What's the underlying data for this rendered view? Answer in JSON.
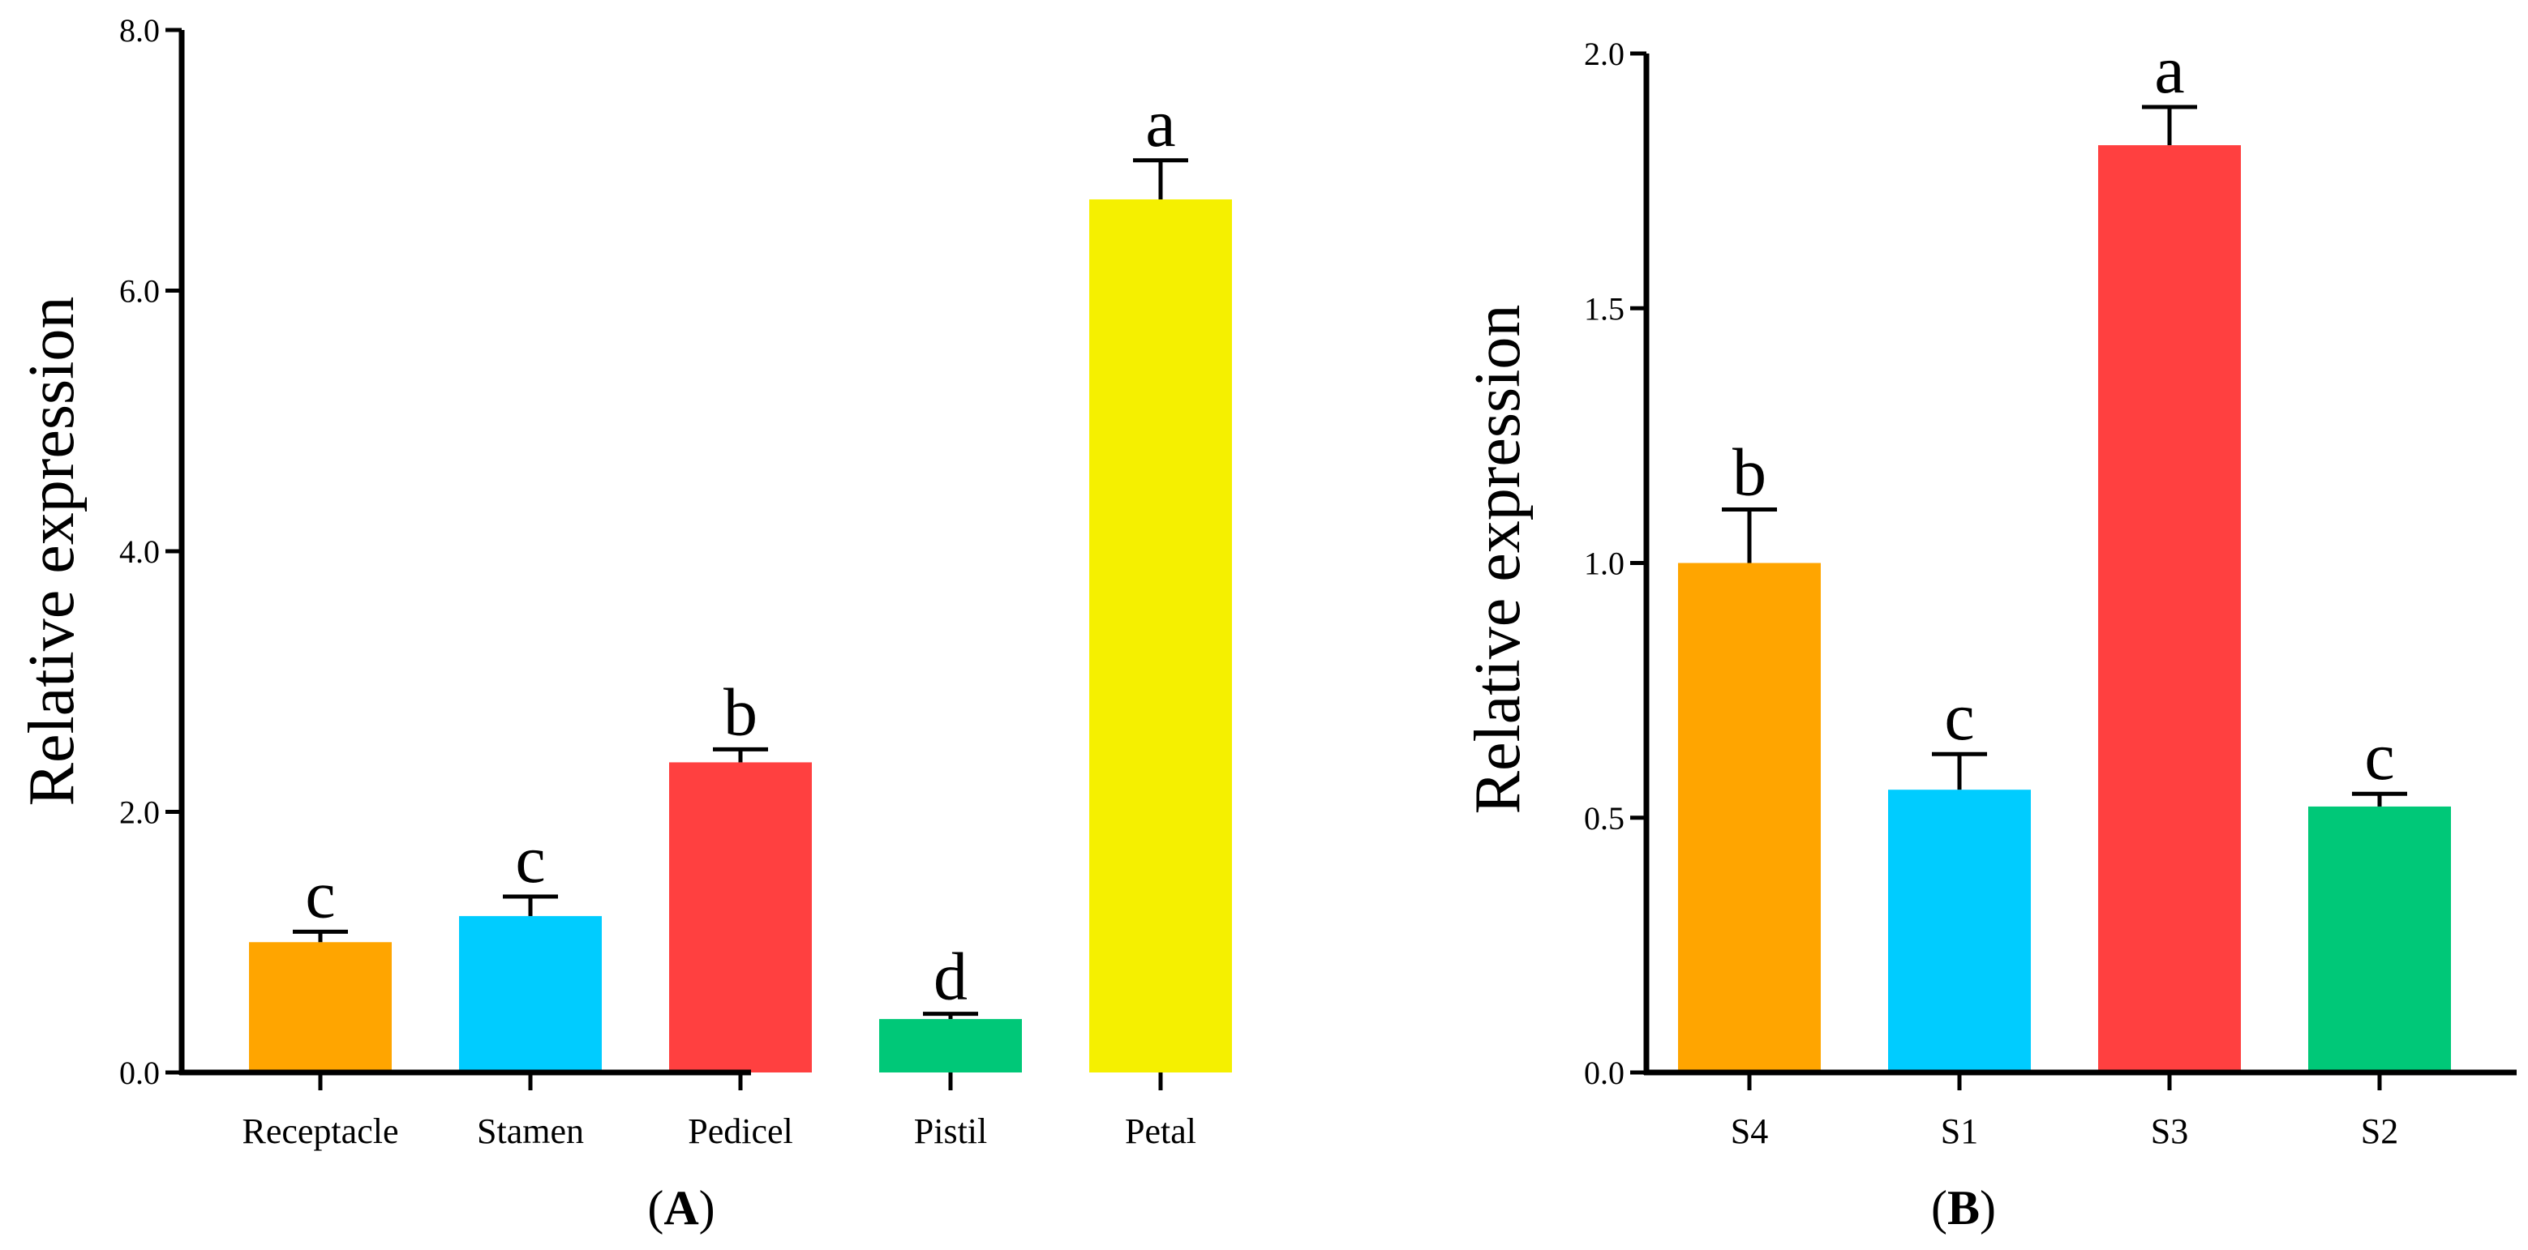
{
  "chart_data": [
    {
      "type": "bar",
      "panel": "(A)",
      "panel_open": "(",
      "panel_letter": "A",
      "panel_close": ")",
      "ylabel": "Relative expression",
      "xlabel": "",
      "ylim": [
        0,
        8
      ],
      "yticks": [
        0,
        2,
        4,
        6,
        8
      ],
      "ytick_labels": [
        "0.0",
        "2.0",
        "4.0",
        "6.0",
        "8.0"
      ],
      "categories": [
        "Receptacle",
        "Stamen",
        "Pedicel",
        "Pistil",
        "Petal"
      ],
      "values": [
        1.0,
        1.2,
        2.38,
        0.41,
        6.7
      ],
      "errors": [
        0.08,
        0.15,
        0.1,
        0.04,
        0.3
      ],
      "significance": [
        "c",
        "c",
        "b",
        "d",
        "a"
      ],
      "colors": [
        "#FFA500",
        "#00CCFF",
        "#FF4040",
        "#00C878",
        "#F5F000"
      ],
      "grid": false
    },
    {
      "type": "bar",
      "panel": "(B)",
      "panel_open": "(",
      "panel_letter": "B",
      "panel_close": ")",
      "ylabel": "Relative expression",
      "xlabel": "",
      "ylim": [
        0,
        2
      ],
      "yticks": [
        0,
        0.5,
        1,
        1.5,
        2
      ],
      "ytick_labels": [
        "0.0",
        "0.5",
        "1.0",
        "1.5",
        "2.0"
      ],
      "categories": [
        "S4",
        "S1",
        "S3",
        "S2"
      ],
      "values": [
        1.0,
        0.555,
        1.82,
        0.522
      ],
      "errors": [
        0.105,
        0.07,
        0.075,
        0.025
      ],
      "significance": [
        "b",
        "c",
        "a",
        "c"
      ],
      "colors": [
        "#FFA500",
        "#00CCFF",
        "#FF4040",
        "#00C878"
      ],
      "grid": false
    }
  ]
}
